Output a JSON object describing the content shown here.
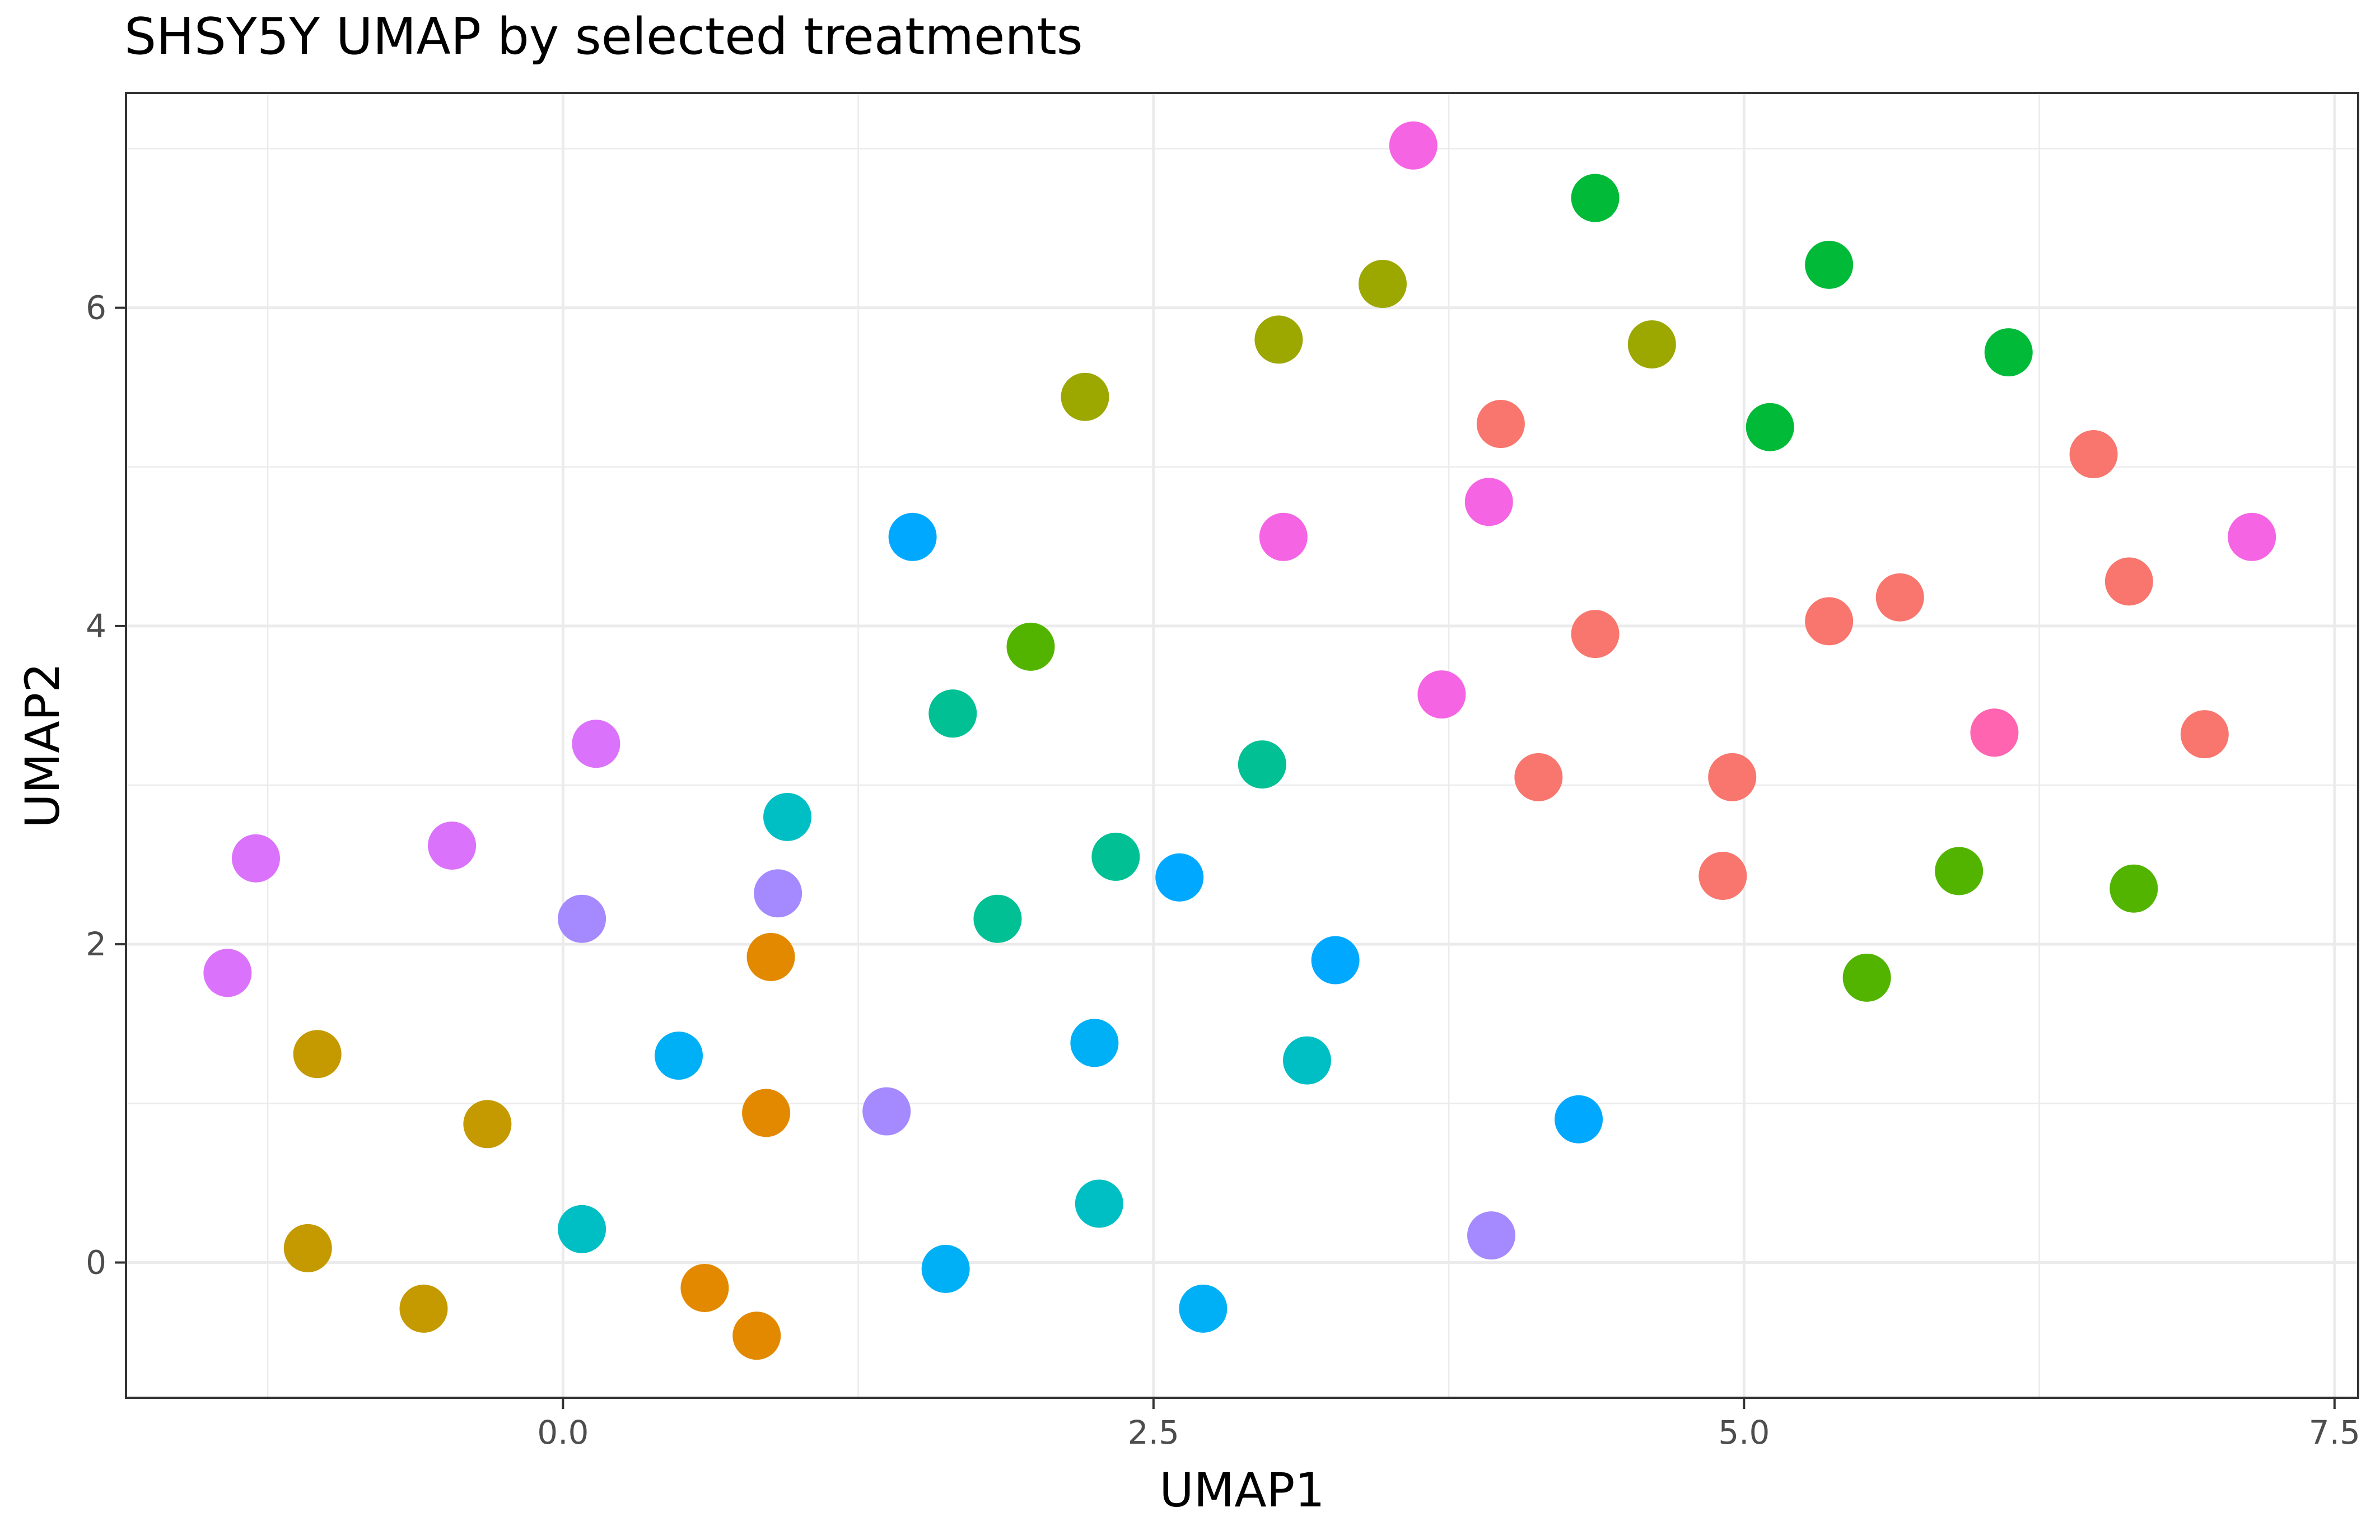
{
  "chart_data": {
    "type": "scatter",
    "title": "SHSY5Y UMAP by selected treatments",
    "xlabel": "UMAP1",
    "ylabel": "UMAP2",
    "xlim": [
      -1.85,
      7.6
    ],
    "ylim": [
      -0.85,
      7.35
    ],
    "x_major_ticks": [
      0.0,
      2.5,
      5.0,
      7.5
    ],
    "x_tick_labels": [
      "0.0",
      "2.5",
      "5.0",
      "7.5"
    ],
    "x_minor_ticks": [
      -1.25,
      1.25,
      3.75,
      6.25
    ],
    "y_major_ticks": [
      0,
      2,
      4,
      6
    ],
    "y_tick_labels": [
      "0",
      "2",
      "4",
      "6"
    ],
    "y_minor_ticks": [
      1,
      3,
      5,
      7
    ],
    "grid": true,
    "legend": "none",
    "points": [
      {
        "x": 3.6,
        "y": 7.02,
        "color": "#F564E3"
      },
      {
        "x": 4.37,
        "y": 6.69,
        "color": "#00BA38"
      },
      {
        "x": 3.47,
        "y": 6.15,
        "color": "#9CA700"
      },
      {
        "x": 5.36,
        "y": 6.27,
        "color": "#00BA38"
      },
      {
        "x": 3.03,
        "y": 5.8,
        "color": "#9CA700"
      },
      {
        "x": 4.61,
        "y": 5.77,
        "color": "#9CA700"
      },
      {
        "x": 6.12,
        "y": 5.72,
        "color": "#00BA38"
      },
      {
        "x": 2.21,
        "y": 5.44,
        "color": "#9CA700"
      },
      {
        "x": 3.97,
        "y": 5.27,
        "color": "#F8766D"
      },
      {
        "x": 5.11,
        "y": 5.25,
        "color": "#00BA38"
      },
      {
        "x": 6.48,
        "y": 5.08,
        "color": "#F8766D"
      },
      {
        "x": 3.92,
        "y": 4.78,
        "color": "#F564E3"
      },
      {
        "x": 1.48,
        "y": 4.56,
        "color": "#00A9FF"
      },
      {
        "x": 3.05,
        "y": 4.56,
        "color": "#F564E3"
      },
      {
        "x": 7.15,
        "y": 4.56,
        "color": "#F564E3"
      },
      {
        "x": 6.63,
        "y": 4.28,
        "color": "#F8766D"
      },
      {
        "x": 5.66,
        "y": 4.18,
        "color": "#F8766D"
      },
      {
        "x": 5.36,
        "y": 4.03,
        "color": "#F8766D"
      },
      {
        "x": 4.37,
        "y": 3.95,
        "color": "#F8766D"
      },
      {
        "x": 1.98,
        "y": 3.87,
        "color": "#53B400"
      },
      {
        "x": 3.72,
        "y": 3.57,
        "color": "#F564E3"
      },
      {
        "x": 1.65,
        "y": 3.45,
        "color": "#00C094"
      },
      {
        "x": 6.06,
        "y": 3.33,
        "color": "#FF64B0"
      },
      {
        "x": 6.95,
        "y": 3.32,
        "color": "#F8766D"
      },
      {
        "x": 0.14,
        "y": 3.26,
        "color": "#DB72FB"
      },
      {
        "x": 2.96,
        "y": 3.13,
        "color": "#00C094"
      },
      {
        "x": 4.13,
        "y": 3.05,
        "color": "#F8766D"
      },
      {
        "x": 4.95,
        "y": 3.05,
        "color": "#F8766D"
      },
      {
        "x": 0.95,
        "y": 2.8,
        "color": "#00BFC4"
      },
      {
        "x": -1.3,
        "y": 2.54,
        "color": "#DB72FB"
      },
      {
        "x": -0.47,
        "y": 2.62,
        "color": "#DB72FB"
      },
      {
        "x": 2.34,
        "y": 2.55,
        "color": "#00C094"
      },
      {
        "x": 5.91,
        "y": 2.46,
        "color": "#53B400"
      },
      {
        "x": 4.91,
        "y": 2.43,
        "color": "#F8766D"
      },
      {
        "x": 2.61,
        "y": 2.42,
        "color": "#00A9FF"
      },
      {
        "x": 6.65,
        "y": 2.35,
        "color": "#53B400"
      },
      {
        "x": 0.91,
        "y": 2.32,
        "color": "#A58AFF"
      },
      {
        "x": 0.08,
        "y": 2.16,
        "color": "#A58AFF"
      },
      {
        "x": 1.84,
        "y": 2.16,
        "color": "#00C094"
      },
      {
        "x": 0.88,
        "y": 1.92,
        "color": "#E38900"
      },
      {
        "x": 3.27,
        "y": 1.9,
        "color": "#00A9FF"
      },
      {
        "x": -1.42,
        "y": 1.82,
        "color": "#DB72FB"
      },
      {
        "x": 5.52,
        "y": 1.79,
        "color": "#53B400"
      },
      {
        "x": 2.25,
        "y": 1.38,
        "color": "#00B0F6"
      },
      {
        "x": -1.04,
        "y": 1.31,
        "color": "#C49A00"
      },
      {
        "x": 0.49,
        "y": 1.3,
        "color": "#00B0F6"
      },
      {
        "x": 3.15,
        "y": 1.27,
        "color": "#00BFC4"
      },
      {
        "x": 1.37,
        "y": 0.95,
        "color": "#A58AFF"
      },
      {
        "x": 0.86,
        "y": 0.94,
        "color": "#E38900"
      },
      {
        "x": 4.3,
        "y": 0.9,
        "color": "#00A9FF"
      },
      {
        "x": -0.32,
        "y": 0.87,
        "color": "#C49A00"
      },
      {
        "x": 2.27,
        "y": 0.37,
        "color": "#00BFC4"
      },
      {
        "x": 0.08,
        "y": 0.21,
        "color": "#00BFC4"
      },
      {
        "x": 3.93,
        "y": 0.17,
        "color": "#A58AFF"
      },
      {
        "x": -1.08,
        "y": 0.09,
        "color": "#C49A00"
      },
      {
        "x": 1.62,
        "y": -0.04,
        "color": "#00B0F6"
      },
      {
        "x": 0.6,
        "y": -0.16,
        "color": "#E38900"
      },
      {
        "x": -0.59,
        "y": -0.29,
        "color": "#C49A00"
      },
      {
        "x": 2.71,
        "y": -0.29,
        "color": "#00B0F6"
      },
      {
        "x": 0.82,
        "y": -0.46,
        "color": "#E38900"
      }
    ]
  }
}
